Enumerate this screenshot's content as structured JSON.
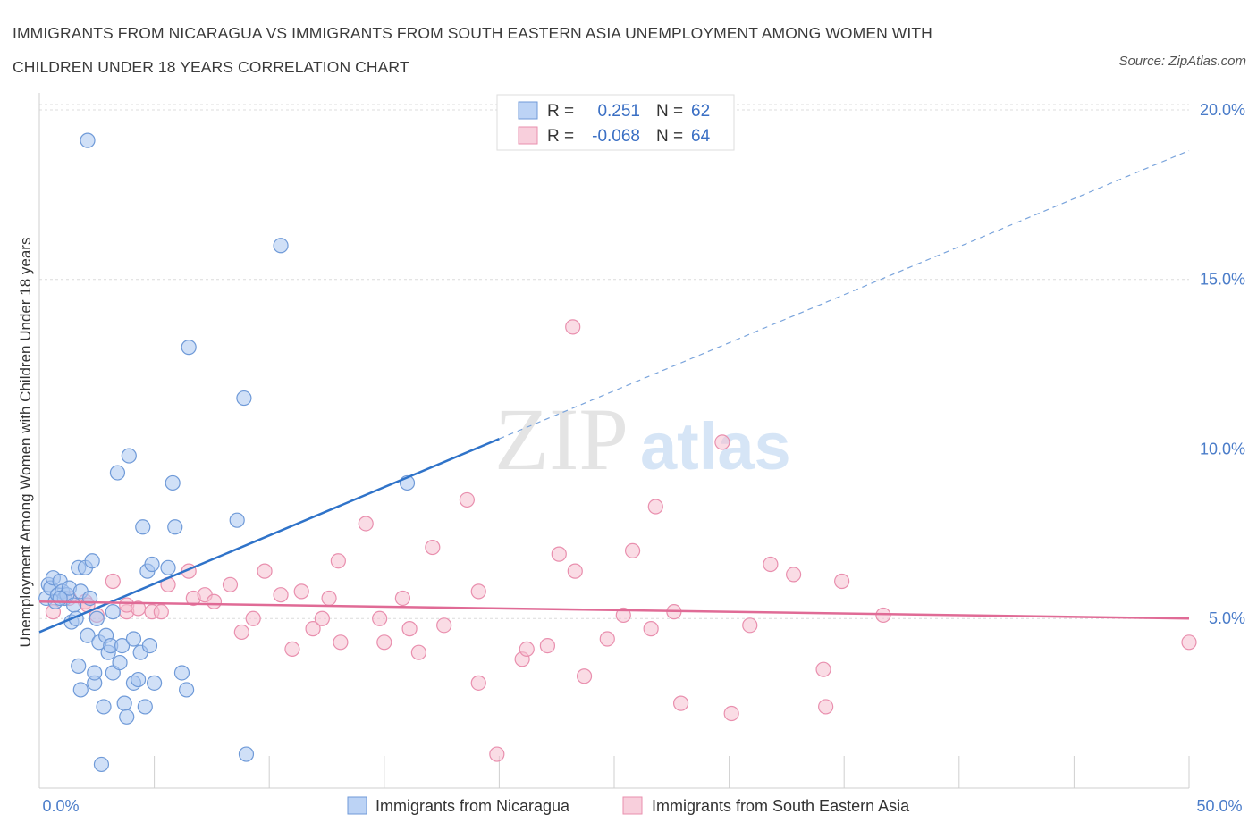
{
  "title": "IMMIGRANTS FROM NICARAGUA VS IMMIGRANTS FROM SOUTH EASTERN ASIA UNEMPLOYMENT AMONG WOMEN WITH CHILDREN UNDER 18 YEARS CORRELATION CHART",
  "source": "Source: ZipAtlas.com",
  "watermark": {
    "zip": "ZIP",
    "atlas": "atlas"
  },
  "legend": {
    "r_label": "R =",
    "n_label": "N =",
    "rows": [
      {
        "r": "0.251",
        "n": "62"
      },
      {
        "r": "-0.068",
        "n": "64"
      }
    ]
  },
  "colors": {
    "blue_fill": "#a9c6f0",
    "blue_stroke": "#6f9ad8",
    "blue_line": "#2f73c9",
    "pink_fill": "#f6bfd0",
    "pink_stroke": "#e98fae",
    "pink_line": "#e06b96",
    "grid": "#dcdcdc",
    "tick_text": "#4a7cc9"
  },
  "chart_data": {
    "type": "scatter",
    "title": "IMMIGRANTS FROM NICARAGUA VS IMMIGRANTS FROM SOUTH EASTERN ASIA UNEMPLOYMENT AMONG WOMEN WITH CHILDREN UNDER 18 YEARS CORRELATION CHART",
    "xlabel": "",
    "ylabel": "Unemployment Among Women with Children Under 18 years",
    "xlim": [
      0,
      50
    ],
    "ylim": [
      0,
      20.5
    ],
    "x_tick_labels": [
      "0.0%",
      "50.0%"
    ],
    "y_ticks": [
      5,
      10,
      15,
      20
    ],
    "y_tick_labels": [
      "5.0%",
      "10.0%",
      "15.0%",
      "20.0%"
    ],
    "grid": true,
    "legend_position": "top-center",
    "series": [
      {
        "name": "Immigrants from Nicaragua",
        "color": "#a9c6f0",
        "trend": {
          "x": [
            0,
            20
          ],
          "y": [
            4.6,
            10.3
          ],
          "dashed_to": [
            50,
            18.8
          ]
        },
        "points": [
          [
            0.3,
            5.6
          ],
          [
            0.4,
            6.0
          ],
          [
            0.5,
            5.9
          ],
          [
            0.6,
            6.2
          ],
          [
            0.7,
            5.5
          ],
          [
            0.8,
            5.7
          ],
          [
            0.9,
            6.1
          ],
          [
            1.0,
            5.8
          ],
          [
            1.1,
            5.6
          ],
          [
            1.2,
            5.7
          ],
          [
            1.3,
            5.9
          ],
          [
            1.4,
            4.9
          ],
          [
            1.5,
            5.4
          ],
          [
            1.6,
            5.0
          ],
          [
            1.7,
            6.5
          ],
          [
            1.8,
            5.8
          ],
          [
            2.2,
            5.6
          ],
          [
            1.7,
            3.6
          ],
          [
            1.8,
            2.9
          ],
          [
            2.0,
            6.5
          ],
          [
            2.1,
            4.5
          ],
          [
            2.1,
            19.1
          ],
          [
            2.3,
            6.7
          ],
          [
            2.4,
            3.1
          ],
          [
            2.4,
            3.4
          ],
          [
            2.5,
            5.0
          ],
          [
            2.6,
            4.3
          ],
          [
            2.7,
            0.7
          ],
          [
            2.8,
            2.4
          ],
          [
            2.9,
            4.5
          ],
          [
            3.0,
            4.0
          ],
          [
            3.1,
            4.2
          ],
          [
            3.2,
            3.4
          ],
          [
            3.2,
            5.2
          ],
          [
            3.4,
            9.3
          ],
          [
            3.5,
            3.7
          ],
          [
            3.6,
            4.2
          ],
          [
            3.7,
            2.5
          ],
          [
            3.8,
            2.1
          ],
          [
            3.9,
            9.8
          ],
          [
            4.1,
            4.4
          ],
          [
            4.1,
            3.1
          ],
          [
            4.3,
            3.2
          ],
          [
            4.4,
            4.0
          ],
          [
            4.5,
            7.7
          ],
          [
            4.6,
            2.4
          ],
          [
            4.7,
            6.4
          ],
          [
            4.8,
            4.2
          ],
          [
            4.9,
            6.6
          ],
          [
            5.0,
            3.1
          ],
          [
            5.6,
            6.5
          ],
          [
            5.8,
            9.0
          ],
          [
            5.9,
            7.7
          ],
          [
            6.2,
            3.4
          ],
          [
            6.4,
            2.9
          ],
          [
            6.5,
            13.0
          ],
          [
            8.6,
            7.9
          ],
          [
            8.9,
            11.5
          ],
          [
            9.0,
            1.0
          ],
          [
            10.5,
            16.0
          ],
          [
            16.0,
            9.0
          ],
          [
            0.9,
            5.6
          ]
        ]
      },
      {
        "name": "Immigrants from South Eastern Asia",
        "color": "#f6bfd0",
        "trend": {
          "x": [
            0,
            50
          ],
          "y": [
            5.5,
            5.0
          ]
        },
        "points": [
          [
            0.6,
            5.2
          ],
          [
            1.3,
            5.6
          ],
          [
            2.0,
            5.5
          ],
          [
            2.5,
            5.1
          ],
          [
            3.2,
            6.1
          ],
          [
            3.8,
            5.2
          ],
          [
            3.8,
            5.4
          ],
          [
            4.3,
            5.3
          ],
          [
            4.9,
            5.2
          ],
          [
            5.3,
            5.2
          ],
          [
            5.6,
            6.0
          ],
          [
            6.5,
            6.4
          ],
          [
            6.7,
            5.6
          ],
          [
            7.2,
            5.7
          ],
          [
            7.6,
            5.5
          ],
          [
            8.3,
            6.0
          ],
          [
            8.8,
            4.6
          ],
          [
            9.3,
            5.0
          ],
          [
            9.8,
            6.4
          ],
          [
            10.5,
            5.7
          ],
          [
            11.0,
            4.1
          ],
          [
            11.4,
            5.8
          ],
          [
            11.9,
            4.7
          ],
          [
            12.3,
            5.0
          ],
          [
            12.6,
            5.6
          ],
          [
            13.0,
            6.7
          ],
          [
            13.1,
            4.3
          ],
          [
            14.2,
            7.8
          ],
          [
            14.8,
            5.0
          ],
          [
            15.0,
            4.3
          ],
          [
            15.8,
            5.6
          ],
          [
            16.1,
            4.7
          ],
          [
            16.5,
            4.0
          ],
          [
            17.1,
            7.1
          ],
          [
            17.6,
            4.8
          ],
          [
            18.6,
            8.5
          ],
          [
            19.1,
            5.8
          ],
          [
            19.1,
            3.1
          ],
          [
            19.9,
            1.0
          ],
          [
            21.0,
            3.8
          ],
          [
            21.2,
            4.1
          ],
          [
            22.1,
            4.2
          ],
          [
            22.6,
            6.9
          ],
          [
            23.2,
            13.6
          ],
          [
            23.3,
            6.4
          ],
          [
            23.7,
            3.3
          ],
          [
            24.7,
            4.4
          ],
          [
            25.4,
            5.1
          ],
          [
            25.8,
            7.0
          ],
          [
            26.6,
            4.7
          ],
          [
            26.8,
            8.3
          ],
          [
            27.6,
            5.2
          ],
          [
            27.9,
            2.5
          ],
          [
            29.7,
            10.2
          ],
          [
            30.1,
            2.2
          ],
          [
            30.9,
            4.8
          ],
          [
            31.8,
            6.6
          ],
          [
            32.8,
            6.3
          ],
          [
            34.1,
            3.5
          ],
          [
            34.2,
            2.4
          ],
          [
            34.9,
            6.1
          ],
          [
            36.7,
            5.1
          ],
          [
            50.0,
            4.3
          ],
          [
            2.1,
            5.4
          ]
        ]
      }
    ]
  },
  "bottom_legend": [
    "Immigrants from Nicaragua",
    "Immigrants from South Eastern Asia"
  ]
}
